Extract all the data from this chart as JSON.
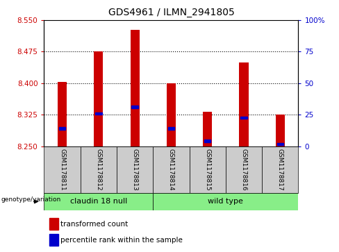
{
  "title": "GDS4961 / ILMN_2941805",
  "samples": [
    "GSM1178811",
    "GSM1178812",
    "GSM1178813",
    "GSM1178814",
    "GSM1178815",
    "GSM1178816",
    "GSM1178817"
  ],
  "bar_tops": [
    8.403,
    8.475,
    8.527,
    8.4,
    8.332,
    8.45,
    8.325
  ],
  "bar_base": 8.25,
  "blue_positions": [
    8.292,
    8.328,
    8.343,
    8.292,
    8.262,
    8.318,
    8.255
  ],
  "ylim": [
    8.25,
    8.55
  ],
  "yticks_left": [
    8.25,
    8.325,
    8.4,
    8.475,
    8.55
  ],
  "yticks_right": [
    0,
    25,
    50,
    75,
    100
  ],
  "bar_color": "#cc0000",
  "blue_color": "#0000cc",
  "bar_width": 0.25,
  "group1_samples": [
    0,
    1,
    2
  ],
  "group2_samples": [
    3,
    4,
    5,
    6
  ],
  "group1_label": "claudin 18 null",
  "group2_label": "wild type",
  "group_bg_color": "#88ee88",
  "sample_box_color": "#cccccc",
  "legend_red_label": "transformed count",
  "legend_blue_label": "percentile rank within the sample",
  "genotype_label": "genotype/variation",
  "left_axis_color": "#cc0000",
  "right_axis_color": "#0000cc"
}
